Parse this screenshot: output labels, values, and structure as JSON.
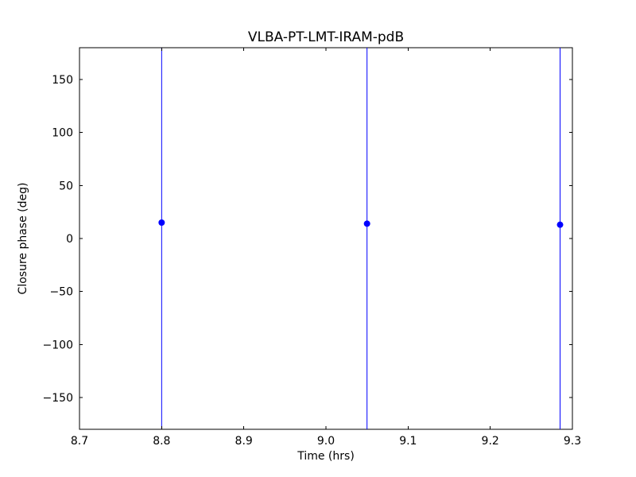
{
  "window": {
    "background": "#ffffff"
  },
  "chart_data": {
    "type": "scatter",
    "title": "VLBA-PT-LMT-IRAM-pdB",
    "xlabel": "Time (hrs)",
    "ylabel": "Closure phase (deg)",
    "xlim": [
      8.7,
      9.3
    ],
    "ylim": [
      -180,
      180
    ],
    "grid": false,
    "x_ticks": [
      {
        "value": 8.7,
        "label": "8.7"
      },
      {
        "value": 8.8,
        "label": "8.8"
      },
      {
        "value": 8.9,
        "label": "8.9"
      },
      {
        "value": 9.0,
        "label": "9.0"
      },
      {
        "value": 9.1,
        "label": "9.1"
      },
      {
        "value": 9.2,
        "label": "9.2"
      },
      {
        "value": 9.3,
        "label": "9.3"
      }
    ],
    "y_ticks": [
      {
        "value": -150,
        "label": "−150"
      },
      {
        "value": -100,
        "label": "−100"
      },
      {
        "value": -50,
        "label": "−50"
      },
      {
        "value": 0,
        "label": "0"
      },
      {
        "value": 50,
        "label": "50"
      },
      {
        "value": 100,
        "label": "100"
      },
      {
        "value": 150,
        "label": "150"
      }
    ],
    "series": [
      {
        "name": "closure phase with error bars",
        "marker": "circle",
        "marker_radius_px": 4,
        "color": "#0000ff",
        "error_bars": {
          "direction": "vertical",
          "extent": "error bars exceed the y-axis range; vertical lines are clipped at the plot top and bottom"
        },
        "points": [
          {
            "x": 8.8,
            "y": 15
          },
          {
            "x": 9.05,
            "y": 14
          },
          {
            "x": 9.285,
            "y": 13
          }
        ]
      }
    ],
    "colors": {
      "series": "#0000ff",
      "axis": "#000000",
      "text": "#000000",
      "plot_background": "#ffffff"
    }
  }
}
